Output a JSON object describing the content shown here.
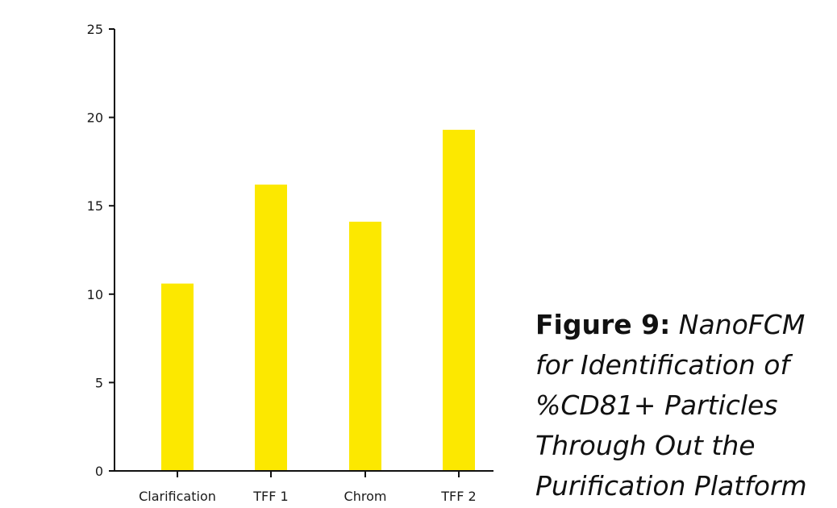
{
  "chart_data": {
    "type": "bar",
    "categories": [
      "Clarification",
      "TFF 1",
      "Chrom",
      "TFF 2"
    ],
    "values": [
      10.6,
      16.2,
      14.1,
      19.3
    ],
    "ylim": [
      0,
      25
    ],
    "yticks": [
      "0",
      "5",
      "10",
      "15",
      "20",
      "25"
    ],
    "bar_color": "#FCE800",
    "title": "",
    "xlabel": "",
    "ylabel": "",
    "grid": false,
    "legend": "none"
  },
  "caption": {
    "lead": "Figure 9:",
    "lines": [
      "NanoFCM",
      "for Identification of",
      "%CD81+ Particles",
      "Through Out the",
      "Purification Platform"
    ]
  }
}
